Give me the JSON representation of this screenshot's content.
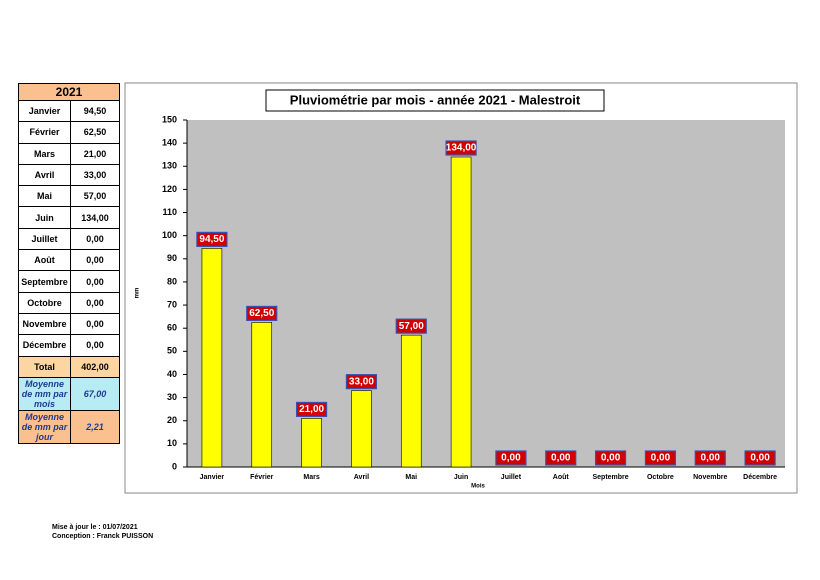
{
  "table": {
    "header": "2021",
    "rows": [
      [
        "Janvier",
        "94,50"
      ],
      [
        "Février",
        "62,50"
      ],
      [
        "Mars",
        "21,00"
      ],
      [
        "Avril",
        "33,00"
      ],
      [
        "Mai",
        "57,00"
      ],
      [
        "Juin",
        "134,00"
      ],
      [
        "Juillet",
        "0,00"
      ],
      [
        "Août",
        "0,00"
      ],
      [
        "Septembre",
        "0,00"
      ],
      [
        "Octobre",
        "0,00"
      ],
      [
        "Novembre",
        "0,00"
      ],
      [
        "Décembre",
        "0,00"
      ]
    ],
    "total": [
      "Total",
      "402,00"
    ],
    "avg_month": [
      "Moyenne de mm par mois",
      "67,00"
    ],
    "avg_day": [
      "Moyenne de mm par jour",
      "2,21"
    ]
  },
  "chart_data": {
    "type": "bar",
    "title": "Pluviométrie par mois - année 2021 - Malestroit",
    "x_label": "Mois",
    "y_label": "mm",
    "categories": [
      "Janvier",
      "Février",
      "Mars",
      "Avril",
      "Mai",
      "Juin",
      "Juillet",
      "Août",
      "Septembre",
      "Octobre",
      "Novembre",
      "Décembre"
    ],
    "values": [
      94.5,
      62.5,
      21,
      33,
      57,
      134,
      0,
      0,
      0,
      0,
      0,
      0
    ],
    "value_labels": [
      "94,50",
      "62,50",
      "21,00",
      "33,00",
      "57,00",
      "134,00",
      "0,00",
      "0,00",
      "0,00",
      "0,00",
      "0,00",
      "0,00"
    ],
    "color": "#ffff00",
    "ylim": [
      0,
      150
    ],
    "yticks": [
      0,
      10,
      20,
      30,
      40,
      50,
      60,
      70,
      80,
      90,
      100,
      110,
      120,
      130,
      140,
      150
    ],
    "grid": false
  },
  "footer": {
    "updated": "Mise à jour le : 01/07/2021",
    "author": "Conception : Franck PUISSON"
  }
}
